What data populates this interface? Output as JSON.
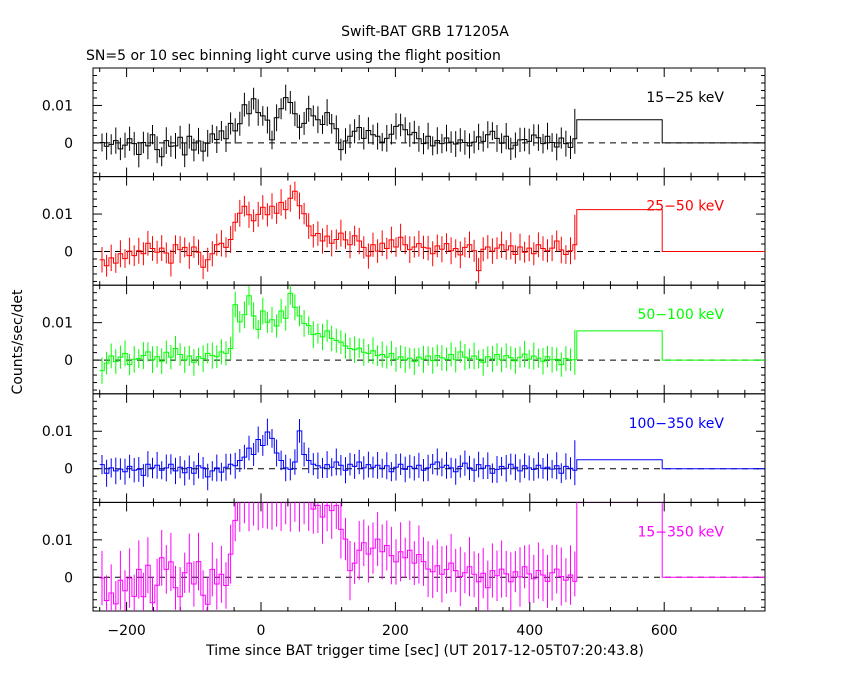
{
  "chart_data": {
    "type": "line",
    "title": "Swift-BAT GRB 171205A",
    "subtitle": "SN=5 or 10 sec binning light curve using the flight position",
    "xlabel": "Time since BAT trigger time [sec] (UT 2017-12-05T07:20:43.8)",
    "ylabel": "Counts/sec/det",
    "xlim": [
      -250,
      750
    ],
    "ylim": [
      -0.009,
      0.02
    ],
    "x_ticks": [
      -200,
      0,
      200,
      400,
      600
    ],
    "x_tick_labels": [
      "−200",
      "0",
      "200",
      "400",
      "600"
    ],
    "y_ticks": [
      0,
      0.01
    ],
    "y_tick_labels": [
      "0",
      "0.01"
    ],
    "baseline": 0,
    "grid": false,
    "legend": "none",
    "panels": [
      {
        "name": "15−25 keV",
        "color": "#000000",
        "values": [
          0.0001,
          -0.0009,
          -0.0004,
          0.0006,
          -0.0016,
          -0.0006,
          0.0011,
          -0.0002,
          -0.0031,
          0.0001,
          -0.0008,
          0.0022,
          -0.0018,
          -0.0037,
          0.0006,
          -0.0009,
          -0.0008,
          0.0015,
          -0.0032,
          0.0018,
          -0.0019,
          0.0005,
          -0.0022,
          -0.0001,
          0.0024,
          0.0009,
          0.0032,
          0.0011,
          0.0052,
          0.0032,
          0.0051,
          0.0102,
          0.0078,
          0.0118,
          0.0081,
          0.0072,
          0.0061,
          0.0008,
          0.0067,
          0.0091,
          0.0121,
          0.0108,
          0.0078,
          0.0042,
          0.0052,
          0.0091,
          0.0072,
          0.0062,
          0.0049,
          0.0081,
          0.0051,
          0.0038,
          -0.0018,
          0.0005,
          0.0018,
          0.0031,
          0.0041,
          0.0012,
          0.0033,
          0.0022,
          0.0018,
          0.0002,
          0.0012,
          0.0023,
          0.0044,
          0.0048,
          0.0035,
          0.0022,
          0.0028,
          0.0011,
          -0.0002,
          0.0018,
          -0.0008,
          0.0006,
          -0.0002,
          0.0013,
          0.0002,
          -0.0003,
          0.0008,
          0.0001,
          -0.0008,
          0.0002,
          0.0016,
          0.0004,
          0.0022,
          0.0031,
          0.0012,
          -0.0001,
          0.0018,
          -0.0016,
          -0.0006,
          0.0008,
          0.0009,
          0.0004,
          0.0021,
          0.0014,
          -0.0002,
          0.0018,
          0.0001,
          -0.0011,
          0.0013,
          -0.0002,
          -0.0012
        ],
        "last_bin": 0.0011,
        "long_bin": 0.0062,
        "tail": 0.0
      },
      {
        "name": "25−50 keV",
        "color": "#ff0000",
        "values": [
          -0.0022,
          -0.0038,
          -0.0017,
          -0.0031,
          -0.0006,
          -0.0019,
          0.0001,
          -0.0011,
          0.0002,
          -0.0006,
          0.0022,
          0.0008,
          -0.0002,
          0.0009,
          -0.0004,
          -0.0031,
          0.0018,
          0.0005,
          0.0011,
          -0.0011,
          0.0012,
          -0.0002,
          -0.0042,
          -0.0022,
          -0.0006,
          0.0018,
          0.0022,
          0.0011,
          0.0032,
          0.0078,
          0.0102,
          0.0121,
          0.0098,
          0.0082,
          0.0099,
          0.0118,
          0.0098,
          0.0121,
          0.0102,
          0.0131,
          0.0112,
          0.0142,
          0.0161,
          0.0122,
          0.0101,
          0.0068,
          0.0042,
          0.0048,
          0.0028,
          0.0041,
          0.0022,
          0.0032,
          0.0049,
          0.0031,
          0.0018,
          0.0042,
          0.0028,
          0.0011,
          -0.0012,
          0.0018,
          0.0001,
          0.0022,
          0.0008,
          0.0031,
          0.0012,
          0.0038,
          0.0018,
          0.0005,
          0.0012,
          0.0021,
          0.0011,
          0.0009,
          -0.0006,
          0.0015,
          0.0006,
          0.0021,
          0.0002,
          0.0008,
          -0.0009,
          0.0011,
          0.0018,
          0.0002,
          -0.0051,
          0.0006,
          0.0012,
          0.0001,
          0.0009,
          0.0018,
          0.0004,
          0.0015,
          -0.0008,
          0.0012,
          -0.0002,
          0.0009,
          -0.0006,
          0.0018,
          0.0008,
          0.0002,
          0.0009,
          0.0028,
          0.0004,
          -0.0008,
          0.0002
        ],
        "last_bin": 0.0018,
        "long_bin": 0.0112,
        "tail": 0.0
      },
      {
        "name": "50−100 keV",
        "color": "#00ff00",
        "values": [
          -0.0028,
          -0.0008,
          0.0011,
          -0.0004,
          0.0008,
          0.0018,
          -0.0012,
          0.0002,
          0.0004,
          0.0012,
          0.0022,
          0.0001,
          0.0009,
          -0.0003,
          0.0021,
          0.0008,
          0.0031,
          0.0015,
          0.0001,
          0.0011,
          -0.0006,
          0.0009,
          0.0004,
          0.0018,
          0.0012,
          0.0009,
          0.0022,
          0.0018,
          0.0031,
          0.0148,
          0.0102,
          0.0121,
          0.0172,
          0.0118,
          0.0082,
          0.0131,
          0.0101,
          0.0108,
          0.0091,
          0.0131,
          0.0112,
          0.0178,
          0.0141,
          0.0118,
          0.0098,
          0.0092,
          0.0068,
          0.0071,
          0.0062,
          0.0078,
          0.0058,
          0.0052,
          0.0048,
          0.0038,
          0.0031,
          0.0028,
          0.0032,
          0.0021,
          0.0018,
          0.0025,
          0.0012,
          0.0015,
          0.0008,
          0.0018,
          0.0002,
          0.0009,
          0.0001,
          0.0005,
          -0.0004,
          0.0008,
          0.0002,
          0.0011,
          -0.0001,
          0.0012,
          0.0006,
          0.0002,
          0.0015,
          0.0001,
          0.0022,
          0.0008,
          0.0004,
          0.0011,
          0.0002,
          -0.0006,
          0.0009,
          0.0003,
          0.0015,
          0.0001,
          0.0012,
          0.0006,
          -0.0002,
          0.0008,
          0.0016,
          0.0002,
          0.0011,
          0.0005,
          -0.0003,
          0.0009,
          0.0001,
          0.0002,
          -0.0012,
          0.0004,
          0.0001
        ],
        "last_bin": 0.0001,
        "long_bin": 0.0078,
        "tail": 0.0
      },
      {
        "name": "100−350 keV",
        "color": "#0000ff",
        "values": [
          0.0011,
          -0.0012,
          0.0002,
          -0.0006,
          -0.0001,
          -0.0008,
          0.0006,
          -0.0004,
          -0.0002,
          -0.0018,
          0.0012,
          0.0002,
          0.0009,
          -0.0004,
          0.0002,
          0.0012,
          -0.0006,
          0.0004,
          -0.0011,
          0.0003,
          -0.0012,
          0.0008,
          0.0002,
          -0.0022,
          -0.0006,
          0.0002,
          -0.0009,
          0.0004,
          0.0012,
          0.0008,
          0.0022,
          0.0031,
          0.0055,
          0.0038,
          0.0078,
          0.0062,
          0.0098,
          0.0081,
          0.0042,
          0.0022,
          0.0002,
          -0.0002,
          0.0018,
          0.0101,
          0.0038,
          0.0022,
          0.0012,
          0.0008,
          0.0002,
          0.0011,
          0.0004,
          0.0018,
          0.0009,
          -0.0004,
          0.0012,
          0.0006,
          0.0018,
          0.0002,
          0.0011,
          0.0004,
          0.0009,
          0.0001,
          0.0008,
          -0.0008,
          0.0004,
          0.0012,
          -0.0002,
          0.0006,
          0.0001,
          0.0009,
          -0.0004,
          0.0002,
          0.0012,
          0.0018,
          0.0004,
          0.0009,
          0.0002,
          -0.0008,
          0.0006,
          0.0015,
          0.0002,
          -0.0004,
          0.0011,
          0.0001,
          0.0008,
          -0.0012,
          -0.0002,
          0.0006,
          0.0001,
          0.0012,
          0.0004,
          -0.0006,
          0.0008,
          0.0002,
          -0.0002,
          0.0009,
          0.0001,
          0.0004,
          -0.0001,
          0.0008,
          -0.0012,
          0.0006,
          0.0001
        ],
        "last_bin": -0.0004,
        "long_bin": 0.0024,
        "tail": 0.0
      },
      {
        "name": "15−350 keV",
        "color": "#ff00ff",
        "values": [
          -0.0002,
          -0.0062,
          -0.0042,
          -0.0071,
          -0.0008,
          -0.0036,
          -0.0002,
          -0.0051,
          0.0021,
          -0.0052,
          0.0032,
          -0.0068,
          -0.0021,
          0.0052,
          0.0021,
          0.0041,
          -0.0028,
          -0.0052,
          0.0012,
          0.0038,
          -0.0018,
          0.0042,
          -0.0048,
          -0.0072,
          0.0021,
          -0.0018,
          0.0008,
          -0.0022,
          0.0062,
          0.0152,
          0.0201,
          0.0201,
          0.0201,
          0.0201,
          0.0201,
          0.0201,
          0.0201,
          0.0201,
          0.0201,
          0.0201,
          0.0201,
          0.0201,
          0.0201,
          0.0201,
          0.0201,
          0.0201,
          0.0182,
          0.0192,
          0.0161,
          0.0192,
          0.0178,
          0.0192,
          0.0128,
          0.0102,
          0.0018,
          0.0038,
          0.0072,
          0.0092,
          0.0062,
          0.0078,
          0.0102,
          0.0068,
          0.0085,
          0.0058,
          0.0041,
          0.0068,
          0.0052,
          0.0072,
          0.0038,
          0.0061,
          0.0042,
          0.0022,
          0.0015,
          0.0031,
          0.0008,
          0.0021,
          0.0038,
          0.0018,
          0.0002,
          0.0012,
          0.0028,
          0.0008,
          -0.0012,
          0.0011,
          -0.0028,
          0.0018,
          0.0004,
          0.0022,
          0.0009,
          -0.0012,
          0.0015,
          0.0001,
          0.0028,
          0.0009,
          -0.0004,
          0.0018,
          0.0006,
          -0.0011,
          0.0012,
          0.0022,
          0.0002,
          -0.0008,
          0.0006
        ],
        "last_bin": -0.0011,
        "long_bin": 0.0201,
        "tail": 0.0
      }
    ]
  }
}
